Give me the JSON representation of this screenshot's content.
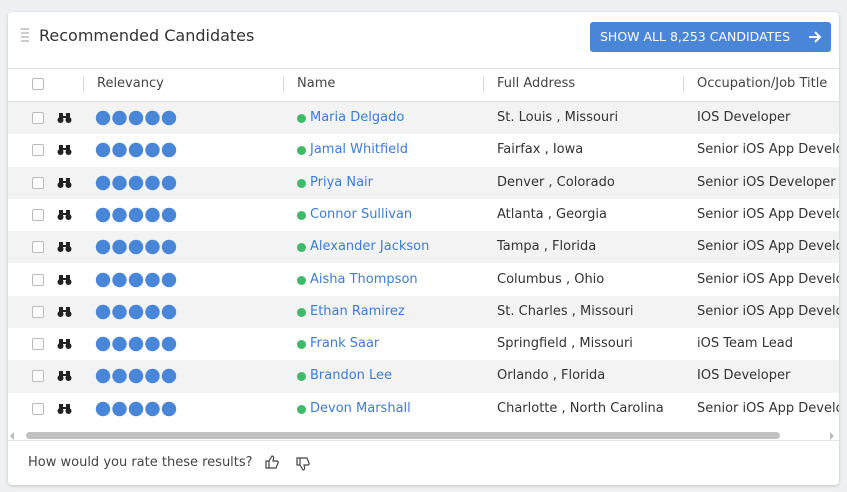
{
  "header": {
    "title": "Recommended Candidates",
    "button": "SHOW ALL 8,253 CANDIDATES"
  },
  "table": {
    "columns": [
      "Relevancy",
      "Name",
      "Full Address",
      "Occupation/Job Title"
    ],
    "rows": [
      {
        "relevancy": 5,
        "name": "Maria Delgado",
        "address": "St. Louis , Missouri",
        "title": "IOS Developer"
      },
      {
        "relevancy": 5,
        "name": "Jamal Whitfield",
        "address": "Fairfax , Iowa",
        "title": "Senior iOS App Developer"
      },
      {
        "relevancy": 5,
        "name": "Priya Nair",
        "address": "Denver , Colorado",
        "title": "Senior iOS Developer"
      },
      {
        "relevancy": 5,
        "name": "Connor Sullivan",
        "address": "Atlanta , Georgia",
        "title": "Senior iOS App Developer"
      },
      {
        "relevancy": 5,
        "name": "Alexander Jackson",
        "address": "Tampa , Florida",
        "title": "Senior iOS App Developer"
      },
      {
        "relevancy": 5,
        "name": "Aisha Thompson",
        "address": "Columbus , Ohio",
        "title": "Senior iOS App Developer"
      },
      {
        "relevancy": 5,
        "name": "Ethan Ramirez",
        "address": "St. Charles , Missouri",
        "title": "Senior iOS App Developer"
      },
      {
        "relevancy": 5,
        "name": "Frank Saar",
        "address": "Springfield , Missouri",
        "title": "iOS Team Lead"
      },
      {
        "relevancy": 5,
        "name": "Brandon Lee",
        "address": "Orlando , Florida",
        "title": "IOS Developer"
      },
      {
        "relevancy": 5,
        "name": "Devon Marshall",
        "address": "Charlotte , North Carolina",
        "title": "Senior iOS App Developer"
      }
    ]
  },
  "footer": {
    "question": "How would you rate these results?"
  }
}
